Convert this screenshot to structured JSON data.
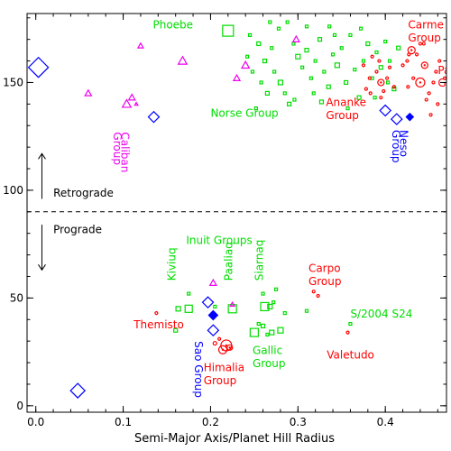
{
  "chart_data": {
    "type": "scatter",
    "title": "",
    "xlabel": "Semi-Major Axis/Planet Hill Radius",
    "ylabel": "",
    "xlim": [
      -0.01,
      0.47
    ],
    "ylim": [
      -3,
      182
    ],
    "xticks": [
      0.0,
      0.1,
      0.2,
      0.3,
      0.4
    ],
    "yticks": [
      0,
      50,
      100,
      150
    ],
    "xtick_labels": [
      "0.0",
      "0.1",
      "0.2",
      "0.3",
      "0.4"
    ],
    "ytick_labels": [
      "0",
      "50",
      "100",
      "150"
    ],
    "divider_y": 90,
    "colors": {
      "Saturn": "#00dd00",
      "Jupiter": "#ff0000",
      "Uranus": "#ee00ee",
      "Neptune": "#0000ff",
      "axes": "#000000"
    },
    "series": [
      {
        "marker": "square",
        "color": "#00dd00",
        "points": [
          [
            0.22,
            174,
            12
          ],
          [
            0.16,
            35,
            4
          ],
          [
            0.245,
            172,
            3
          ],
          [
            0.255,
            168,
            4
          ],
          [
            0.27,
            166,
            3
          ],
          [
            0.262,
            160,
            4
          ],
          [
            0.273,
            155,
            3
          ],
          [
            0.28,
            150,
            5
          ],
          [
            0.285,
            145,
            3
          ],
          [
            0.29,
            140,
            4
          ],
          [
            0.295,
            168,
            3
          ],
          [
            0.3,
            162,
            5
          ],
          [
            0.305,
            157,
            3
          ],
          [
            0.31,
            165,
            4
          ],
          [
            0.315,
            152,
            3
          ],
          [
            0.32,
            160,
            3
          ],
          [
            0.325,
            170,
            4
          ],
          [
            0.33,
            155,
            3
          ],
          [
            0.335,
            148,
            4
          ],
          [
            0.34,
            163,
            3
          ],
          [
            0.345,
            158,
            5
          ],
          [
            0.35,
            166,
            3
          ],
          [
            0.355,
            150,
            4
          ],
          [
            0.36,
            172,
            3
          ],
          [
            0.365,
            156,
            3
          ],
          [
            0.37,
            143,
            4
          ],
          [
            0.375,
            160,
            3
          ],
          [
            0.38,
            168,
            4
          ],
          [
            0.385,
            152,
            3
          ],
          [
            0.39,
            164,
            3
          ],
          [
            0.395,
            157,
            4
          ],
          [
            0.4,
            169,
            3
          ],
          [
            0.405,
            160,
            3
          ],
          [
            0.41,
            147,
            4
          ],
          [
            0.278,
            175,
            3
          ],
          [
            0.265,
            145,
            4
          ],
          [
            0.252,
            138,
            3
          ],
          [
            0.296,
            142,
            3
          ],
          [
            0.31,
            176,
            3
          ],
          [
            0.327,
            141,
            4
          ],
          [
            0.342,
            172,
            3
          ],
          [
            0.357,
            138,
            3
          ],
          [
            0.372,
            175,
            3
          ],
          [
            0.388,
            143,
            3
          ],
          [
            0.403,
            150,
            3
          ],
          [
            0.415,
            166,
            4
          ],
          [
            0.268,
            178,
            3
          ],
          [
            0.288,
            178,
            3
          ],
          [
            0.318,
            145,
            3
          ],
          [
            0.336,
            176,
            3
          ],
          [
            0.248,
            155,
            3
          ],
          [
            0.258,
            150,
            3
          ],
          [
            0.242,
            162,
            3
          ],
          [
            0.175,
            45,
            8
          ],
          [
            0.163,
            45,
            5
          ],
          [
            0.175,
            52,
            3
          ],
          [
            0.225,
            45,
            9
          ],
          [
            0.205,
            46,
            3
          ],
          [
            0.262,
            46,
            9
          ],
          [
            0.268,
            46,
            5
          ],
          [
            0.275,
            54,
            3
          ],
          [
            0.272,
            48,
            3
          ],
          [
            0.26,
            52,
            3
          ],
          [
            0.285,
            43,
            3
          ],
          [
            0.25,
            34,
            9
          ],
          [
            0.26,
            37,
            4
          ],
          [
            0.27,
            34,
            5
          ],
          [
            0.28,
            35,
            6
          ],
          [
            0.265,
            33,
            3
          ],
          [
            0.255,
            38,
            3
          ],
          [
            0.31,
            44,
            3
          ],
          [
            0.36,
            38,
            3
          ]
        ]
      },
      {
        "marker": "circle",
        "color": "#ff0000",
        "points": [
          [
            0.138,
            43,
            3
          ],
          [
            0.218,
            28,
            12
          ],
          [
            0.214,
            26,
            9
          ],
          [
            0.222,
            27,
            6
          ],
          [
            0.205,
            29,
            4
          ],
          [
            0.21,
            31,
            3
          ],
          [
            0.318,
            53,
            3
          ],
          [
            0.323,
            51,
            3
          ],
          [
            0.357,
            34,
            3
          ],
          [
            0.395,
            150,
            7
          ],
          [
            0.378,
            147,
            3
          ],
          [
            0.382,
            152,
            3
          ],
          [
            0.39,
            155,
            3
          ],
          [
            0.398,
            146,
            3
          ],
          [
            0.405,
            157,
            3
          ],
          [
            0.385,
            162,
            3
          ],
          [
            0.375,
            158,
            3
          ],
          [
            0.395,
            143,
            3
          ],
          [
            0.402,
            152,
            3
          ],
          [
            0.41,
            148,
            3
          ],
          [
            0.383,
            145,
            3
          ],
          [
            0.393,
            160,
            3
          ],
          [
            0.43,
            165,
            8
          ],
          [
            0.427,
            163,
            3
          ],
          [
            0.436,
            163,
            3
          ],
          [
            0.44,
            168,
            3
          ],
          [
            0.425,
            160,
            3
          ],
          [
            0.42,
            158,
            3
          ],
          [
            0.44,
            150,
            10
          ],
          [
            0.445,
            158,
            7
          ],
          [
            0.432,
            152,
            3
          ],
          [
            0.426,
            148,
            3
          ],
          [
            0.45,
            145,
            3
          ],
          [
            0.447,
            142,
            3
          ],
          [
            0.455,
            150,
            3
          ],
          [
            0.458,
            155,
            3
          ],
          [
            0.462,
            160,
            3
          ],
          [
            0.452,
            135,
            3
          ],
          [
            0.46,
            140,
            3
          ],
          [
            0.468,
            152,
            3
          ],
          [
            0.444,
            168,
            3
          ]
        ]
      },
      {
        "marker": "triangle",
        "color": "#ee00ee",
        "points": [
          [
            0.12,
            167,
            5
          ],
          [
            0.168,
            160,
            8
          ],
          [
            0.06,
            145,
            6
          ],
          [
            0.11,
            143,
            6
          ],
          [
            0.104,
            140,
            8
          ],
          [
            0.115,
            140,
            3
          ],
          [
            0.24,
            158,
            7
          ],
          [
            0.23,
            152,
            6
          ],
          [
            0.298,
            170,
            6
          ],
          [
            0.203,
            57,
            6
          ],
          [
            0.225,
            47,
            4
          ]
        ]
      },
      {
        "marker": "diamond",
        "color": "#0000ff",
        "points": [
          [
            0.003,
            157,
            11
          ],
          [
            0.135,
            134,
            6
          ],
          [
            0.4,
            137,
            6
          ],
          [
            0.413,
            133,
            6
          ],
          [
            0.048,
            7,
            8
          ],
          [
            0.197,
            48,
            6
          ],
          [
            0.203,
            35,
            6
          ]
        ]
      },
      {
        "marker": "diamond-filled",
        "color": "#0000ff",
        "points": [
          [
            0.428,
            134,
            4
          ],
          [
            0.203,
            42,
            5
          ]
        ]
      }
    ],
    "annotations": [
      {
        "text": "Phoebe",
        "x": 0.18,
        "y": 175,
        "color": "#00dd00",
        "align": "end",
        "rotate": false
      },
      {
        "text": "Norse Group",
        "x": 0.2,
        "y": 134,
        "color": "#00dd00",
        "align": "start",
        "rotate": false
      },
      {
        "text": "Inuit Groups",
        "x": 0.172,
        "y": 75,
        "color": "#00dd00",
        "align": "start",
        "rotate": false
      },
      {
        "text": "Kiviuq",
        "x": 0.16,
        "y": 58,
        "color": "#00dd00",
        "align": "start",
        "rotate": true
      },
      {
        "text": "Paaliaq",
        "x": 0.225,
        "y": 58,
        "color": "#00dd00",
        "align": "start",
        "rotate": true
      },
      {
        "text": "Siarnaq",
        "x": 0.26,
        "y": 58,
        "color": "#00dd00",
        "align": "start",
        "rotate": true
      },
      {
        "text": "Gallic",
        "x": 0.248,
        "y": 24,
        "color": "#00dd00",
        "align": "start",
        "rotate": false
      },
      {
        "text": "Group",
        "x": 0.248,
        "y": 18,
        "color": "#00dd00",
        "align": "start",
        "rotate": false
      },
      {
        "text": "S/2004 S24",
        "x": 0.36,
        "y": 41,
        "color": "#00dd00",
        "align": "start",
        "rotate": false
      },
      {
        "text": "Carme",
        "x": 0.426,
        "y": 175,
        "color": "#ff0000",
        "align": "start",
        "rotate": false
      },
      {
        "text": "Group",
        "x": 0.426,
        "y": 169,
        "color": "#ff0000",
        "align": "start",
        "rotate": false
      },
      {
        "text": "Pa",
        "x": 0.46,
        "y": 154,
        "color": "#ff0000",
        "align": "start",
        "rotate": false
      },
      {
        "text": "G",
        "x": 0.46,
        "y": 148,
        "color": "#ff0000",
        "align": "start",
        "rotate": false
      },
      {
        "text": "Ananke",
        "x": 0.332,
        "y": 139,
        "color": "#ff0000",
        "align": "start",
        "rotate": false
      },
      {
        "text": "Group",
        "x": 0.332,
        "y": 133,
        "color": "#ff0000",
        "align": "start",
        "rotate": false
      },
      {
        "text": "Carpo",
        "x": 0.312,
        "y": 62,
        "color": "#ff0000",
        "align": "start",
        "rotate": false
      },
      {
        "text": "Group",
        "x": 0.312,
        "y": 56,
        "color": "#ff0000",
        "align": "start",
        "rotate": false
      },
      {
        "text": "Themisto",
        "x": 0.112,
        "y": 36,
        "color": "#ff0000",
        "align": "start",
        "rotate": false
      },
      {
        "text": "Himalia",
        "x": 0.192,
        "y": 16,
        "color": "#ff0000",
        "align": "start",
        "rotate": false
      },
      {
        "text": "Group",
        "x": 0.192,
        "y": 10,
        "color": "#ff0000",
        "align": "start",
        "rotate": false
      },
      {
        "text": "Valetudo",
        "x": 0.333,
        "y": 22,
        "color": "#ff0000",
        "align": "start",
        "rotate": false
      },
      {
        "text": "Caliban",
        "x": 0.098,
        "y": 127,
        "color": "#ee00ee",
        "align": "start",
        "rotate": "down"
      },
      {
        "text": "Group",
        "x": 0.089,
        "y": 127,
        "color": "#ee00ee",
        "align": "start",
        "rotate": "down"
      },
      {
        "text": "Neso",
        "x": 0.417,
        "y": 128,
        "color": "#0000ff",
        "align": "start",
        "rotate": "down"
      },
      {
        "text": "Group",
        "x": 0.408,
        "y": 128,
        "color": "#0000ff",
        "align": "start",
        "rotate": "down"
      },
      {
        "text": "Sao Group",
        "x": 0.182,
        "y": 30,
        "color": "#0000ff",
        "align": "start",
        "rotate": "down"
      },
      {
        "text": "Retrograde",
        "x": 0.02,
        "y": 97,
        "color": "#000000",
        "align": "start",
        "rotate": false
      },
      {
        "text": "Prograde",
        "x": 0.02,
        "y": 80,
        "color": "#000000",
        "align": "start",
        "rotate": false
      }
    ],
    "arrows": [
      {
        "direction": "up",
        "x": 0.007,
        "y_from": 96,
        "y_to": 117
      },
      {
        "direction": "down",
        "x": 0.007,
        "y_from": 84,
        "y_to": 63
      }
    ],
    "grid": false,
    "legend": "none"
  }
}
